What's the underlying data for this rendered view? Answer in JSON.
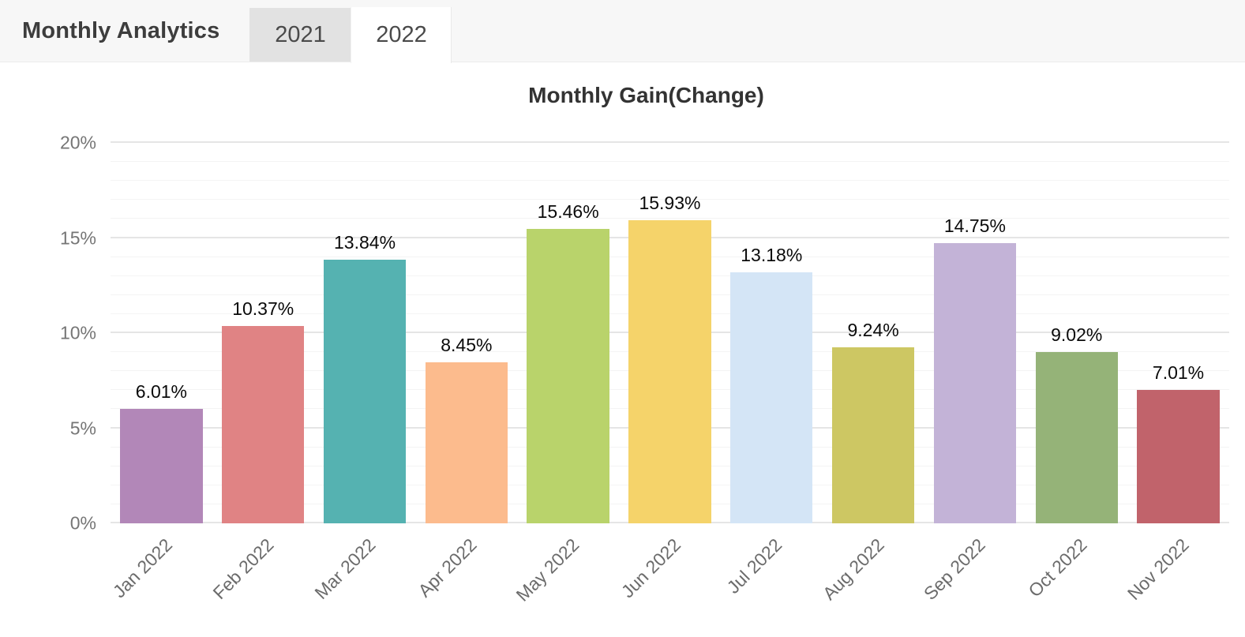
{
  "header": {
    "title": "Monthly Analytics",
    "tabs": [
      {
        "label": "2021",
        "active": false
      },
      {
        "label": "2022",
        "active": true
      }
    ]
  },
  "chart_data": {
    "type": "bar",
    "title": "Monthly Gain(Change)",
    "categories": [
      "Jan 2022",
      "Feb 2022",
      "Mar 2022",
      "Apr 2022",
      "May 2022",
      "Jun 2022",
      "Jul 2022",
      "Aug 2022",
      "Sep 2022",
      "Oct 2022",
      "Nov 2022"
    ],
    "values": [
      6.01,
      10.37,
      13.84,
      8.45,
      15.46,
      15.93,
      13.18,
      9.24,
      14.75,
      9.02,
      7.01
    ],
    "value_labels": [
      "6.01%",
      "10.37%",
      "13.84%",
      "8.45%",
      "15.46%",
      "15.93%",
      "13.18%",
      "9.24%",
      "14.75%",
      "9.02%",
      "7.01%"
    ],
    "bar_colors": [
      "#b287b8",
      "#e08384",
      "#55b2b1",
      "#fcbb8d",
      "#b9d36b",
      "#f5d36a",
      "#d4e5f6",
      "#cdc763",
      "#c3b3d7",
      "#95b378",
      "#c1636b"
    ],
    "xlabel": "",
    "ylabel": "",
    "ylim": [
      0,
      20
    ],
    "y_ticks": [
      "0%",
      "5%",
      "10%",
      "15%",
      "20%"
    ],
    "grid": "horizontal; minor lines every 1%, major lines every 5%",
    "legend": "none"
  }
}
